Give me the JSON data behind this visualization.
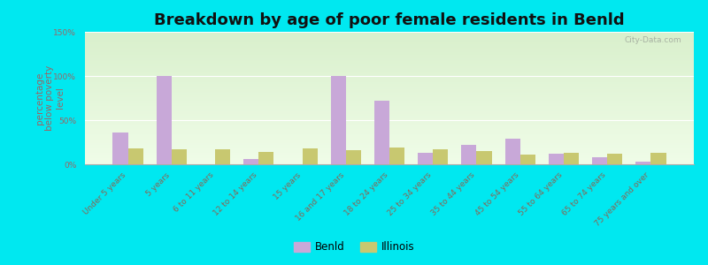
{
  "title": "Breakdown by age of poor female residents in Benld",
  "ylabel": "percentage\nbelow poverty\nlevel",
  "categories": [
    "Under 5 years",
    "5 years",
    "6 to 11 years",
    "12 to 14 years",
    "15 years",
    "16 and 17 years",
    "18 to 24 years",
    "25 to 34 years",
    "35 to 44 years",
    "45 to 54 years",
    "55 to 64 years",
    "65 to 74 years",
    "75 years and over"
  ],
  "benld_values": [
    36,
    100,
    0,
    6,
    0,
    100,
    72,
    13,
    22,
    29,
    12,
    8,
    3
  ],
  "illinois_values": [
    18,
    17,
    17,
    14,
    18,
    16,
    19,
    17,
    15,
    11,
    13,
    12,
    13
  ],
  "benld_color": "#c8a8d8",
  "illinois_color": "#c8c870",
  "bg_color_top": "#daefd0",
  "bg_color_bottom": "#f0fce8",
  "outer_background": "#00e8f0",
  "ylim": [
    0,
    150
  ],
  "yticks": [
    0,
    50,
    100,
    150
  ],
  "ytick_labels": [
    "0%",
    "50%",
    "100%",
    "150%"
  ],
  "bar_width": 0.35,
  "title_fontsize": 13,
  "axis_label_fontsize": 7.5,
  "tick_fontsize": 6.5,
  "legend_fontsize": 8.5,
  "watermark": "City-Data.com",
  "label_color": "#996666",
  "tick_color": "#886655"
}
